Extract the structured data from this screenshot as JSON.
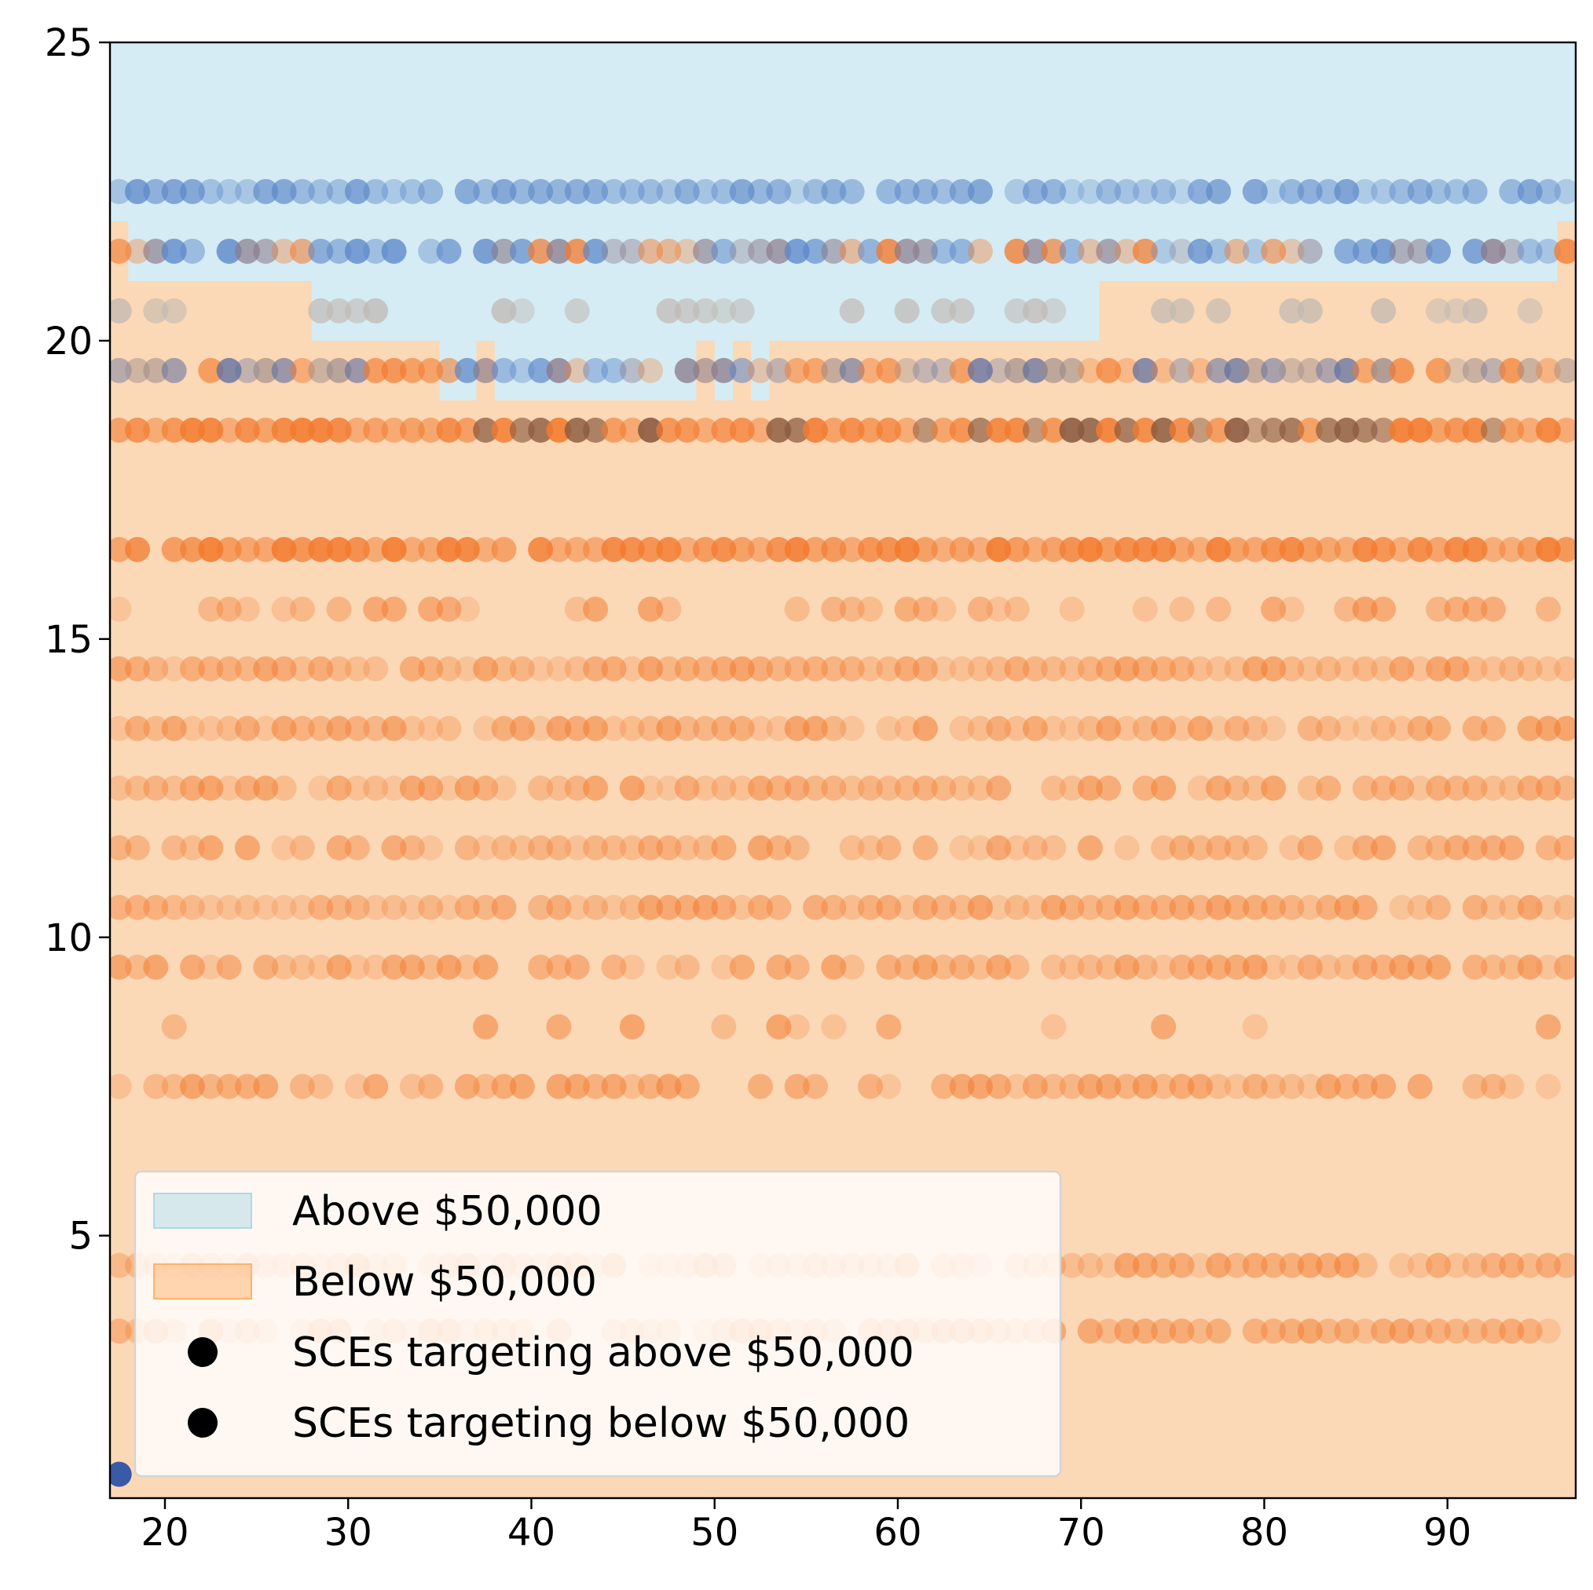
{
  "chart_data": {
    "type": "scatter",
    "title": "",
    "xlabel": "",
    "ylabel": "",
    "xlim": [
      17,
      97
    ],
    "ylim": [
      0.6,
      25
    ],
    "xticks": [
      "20",
      "30",
      "40",
      "50",
      "60",
      "70",
      "80",
      "90"
    ],
    "yticks": [
      "5",
      "10",
      "15",
      "20",
      "25"
    ],
    "grid": false,
    "legend_position": "lower-left",
    "legend": [
      {
        "label": "Above $50,000",
        "kind": "patch",
        "color": "#add8e6"
      },
      {
        "label": "Below $50,000",
        "kind": "patch",
        "color": "#ffb26b"
      },
      {
        "label": "SCEs targeting above $50,000",
        "kind": "dot",
        "color": "#000000"
      },
      {
        "label": "SCEs targeting below $50,000",
        "kind": "dot",
        "color": "#000000"
      }
    ],
    "colors": {
      "above_region": "#d5ecf4",
      "below_region": "#fbd8b6",
      "above_points": "#5b86c8",
      "below_points": "#f27a2e",
      "neutral_points": "#bfb8b2",
      "highlight_point": "#3a5aa8"
    },
    "decision_boundary": {
      "x": [
        17,
        18,
        28,
        35,
        37,
        38,
        49,
        50,
        51,
        52,
        53,
        71,
        96,
        97
      ],
      "y": [
        22,
        21,
        20,
        19,
        20,
        19,
        20,
        19,
        20,
        19,
        20,
        21,
        22,
        22
      ]
    },
    "point_rows": [
      {
        "y": 22.5,
        "class": "above",
        "density": 0.95
      },
      {
        "y": 21.5,
        "class": "mixed",
        "density": 0.95
      },
      {
        "y": 20.5,
        "class": "neutral",
        "density": 0.35
      },
      {
        "y": 19.5,
        "class": "mixed",
        "density": 0.95
      },
      {
        "y": 18.5,
        "class": "below",
        "density": 1.0
      },
      {
        "y": 16.5,
        "class": "below",
        "density": 0.95
      },
      {
        "y": 15.5,
        "class": "below",
        "density": 0.45
      },
      {
        "y": 14.5,
        "class": "below",
        "density": 0.95
      },
      {
        "y": 13.5,
        "class": "below",
        "density": 0.9
      },
      {
        "y": 12.5,
        "class": "below",
        "density": 0.85
      },
      {
        "y": 11.5,
        "class": "below",
        "density": 0.85
      },
      {
        "y": 10.5,
        "class": "below",
        "density": 0.95
      },
      {
        "y": 9.5,
        "class": "below",
        "density": 0.85
      },
      {
        "y": 8.5,
        "class": "below",
        "density": 0.2
      },
      {
        "y": 7.5,
        "class": "below",
        "density": 0.8
      },
      {
        "y": 4.5,
        "class": "below",
        "density": 0.95
      },
      {
        "y": 3.4,
        "class": "below",
        "density": 0.9
      }
    ],
    "highlight_point": {
      "x": 17.5,
      "y": 1.0
    }
  }
}
